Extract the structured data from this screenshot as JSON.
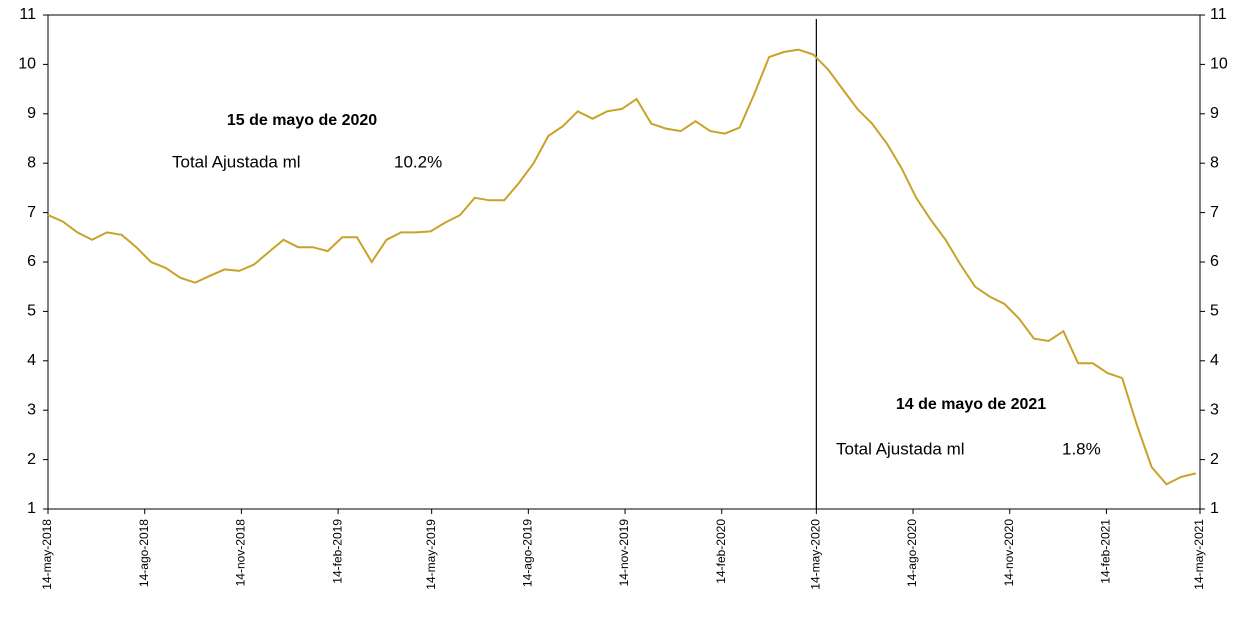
{
  "chart_data": {
    "type": "line",
    "x": [
      "2018-05-14",
      "2018-05-28",
      "2018-06-11",
      "2018-06-25",
      "2018-07-09",
      "2018-07-23",
      "2018-08-06",
      "2018-08-20",
      "2018-09-03",
      "2018-09-17",
      "2018-10-01",
      "2018-10-15",
      "2018-10-29",
      "2018-11-12",
      "2018-11-26",
      "2018-12-10",
      "2018-12-24",
      "2019-01-07",
      "2019-01-21",
      "2019-02-04",
      "2019-02-18",
      "2019-03-04",
      "2019-03-18",
      "2019-04-01",
      "2019-04-15",
      "2019-04-29",
      "2019-05-13",
      "2019-05-27",
      "2019-06-10",
      "2019-06-24",
      "2019-07-08",
      "2019-07-22",
      "2019-08-05",
      "2019-08-19",
      "2019-09-02",
      "2019-09-16",
      "2019-09-30",
      "2019-10-14",
      "2019-10-28",
      "2019-11-11",
      "2019-11-25",
      "2019-12-09",
      "2019-12-23",
      "2020-01-06",
      "2020-01-20",
      "2020-02-03",
      "2020-02-17",
      "2020-03-02",
      "2020-03-16",
      "2020-03-30",
      "2020-04-13",
      "2020-04-27",
      "2020-05-11",
      "2020-05-25",
      "2020-06-08",
      "2020-06-22",
      "2020-07-06",
      "2020-07-20",
      "2020-08-03",
      "2020-08-17",
      "2020-08-31",
      "2020-09-14",
      "2020-09-28",
      "2020-10-12",
      "2020-10-26",
      "2020-11-09",
      "2020-11-23",
      "2020-12-07",
      "2020-12-21",
      "2021-01-04",
      "2021-01-18",
      "2021-02-01",
      "2021-02-15",
      "2021-03-01",
      "2021-03-15",
      "2021-03-29",
      "2021-04-12",
      "2021-04-26",
      "2021-05-10"
    ],
    "series": [
      {
        "name": "Total Ajustada ml",
        "color": "#c9a227",
        "values": [
          6.95,
          6.82,
          6.6,
          6.45,
          6.6,
          6.55,
          6.3,
          6.0,
          5.88,
          5.68,
          5.58,
          5.72,
          5.85,
          5.82,
          5.95,
          6.2,
          6.45,
          6.3,
          6.3,
          6.22,
          6.5,
          6.5,
          6.0,
          6.45,
          6.6,
          6.6,
          6.62,
          6.8,
          6.95,
          7.3,
          7.25,
          7.25,
          7.6,
          8.0,
          8.55,
          8.75,
          9.05,
          8.9,
          9.05,
          9.1,
          9.3,
          8.8,
          8.7,
          8.65,
          8.85,
          8.65,
          8.6,
          8.72,
          9.4,
          10.15,
          10.25,
          10.3,
          10.2,
          9.9,
          9.5,
          9.1,
          8.8,
          8.4,
          7.9,
          7.3,
          6.85,
          6.45,
          5.95,
          5.5,
          5.3,
          5.15,
          4.85,
          4.45,
          4.4,
          4.6,
          3.95,
          3.95,
          3.75,
          3.65,
          2.7,
          1.85,
          1.5,
          1.65,
          1.72
        ]
      }
    ],
    "xlim": [
      "2018-05-14",
      "2021-05-14"
    ],
    "xticks": [
      {
        "value": "2018-05-14",
        "label": "14-may-2018"
      },
      {
        "value": "2018-08-14",
        "label": "14-ago-2018"
      },
      {
        "value": "2018-11-14",
        "label": "14-nov-2018"
      },
      {
        "value": "2019-02-14",
        "label": "14-feb-2019"
      },
      {
        "value": "2019-05-14",
        "label": "14-may-2019"
      },
      {
        "value": "2019-08-14",
        "label": "14-ago-2019"
      },
      {
        "value": "2019-11-14",
        "label": "14-nov-2019"
      },
      {
        "value": "2020-02-14",
        "label": "14-feb-2020"
      },
      {
        "value": "2020-05-14",
        "label": "14-may-2020"
      },
      {
        "value": "2020-08-14",
        "label": "14-ago-2020"
      },
      {
        "value": "2020-11-14",
        "label": "14-nov-2020"
      },
      {
        "value": "2021-02-14",
        "label": "14-feb-2021"
      },
      {
        "value": "2021-05-14",
        "label": "14-may-2021"
      }
    ],
    "ylim": [
      1,
      11
    ],
    "yticks": [
      1,
      2,
      3,
      4,
      5,
      6,
      7,
      8,
      9,
      10,
      11
    ],
    "y2lim": [
      1,
      11
    ],
    "y2ticks": [
      1,
      2,
      3,
      4,
      5,
      6,
      7,
      8,
      9,
      10,
      11
    ],
    "vline": "2020-05-14",
    "annotations": [
      {
        "title": "15 de mayo de 2020",
        "label": "Total Ajustada ml",
        "value": "10.2%"
      },
      {
        "title": "14 de mayo de 2021",
        "label": "Total Ajustada ml",
        "value": "1.8%"
      }
    ]
  }
}
